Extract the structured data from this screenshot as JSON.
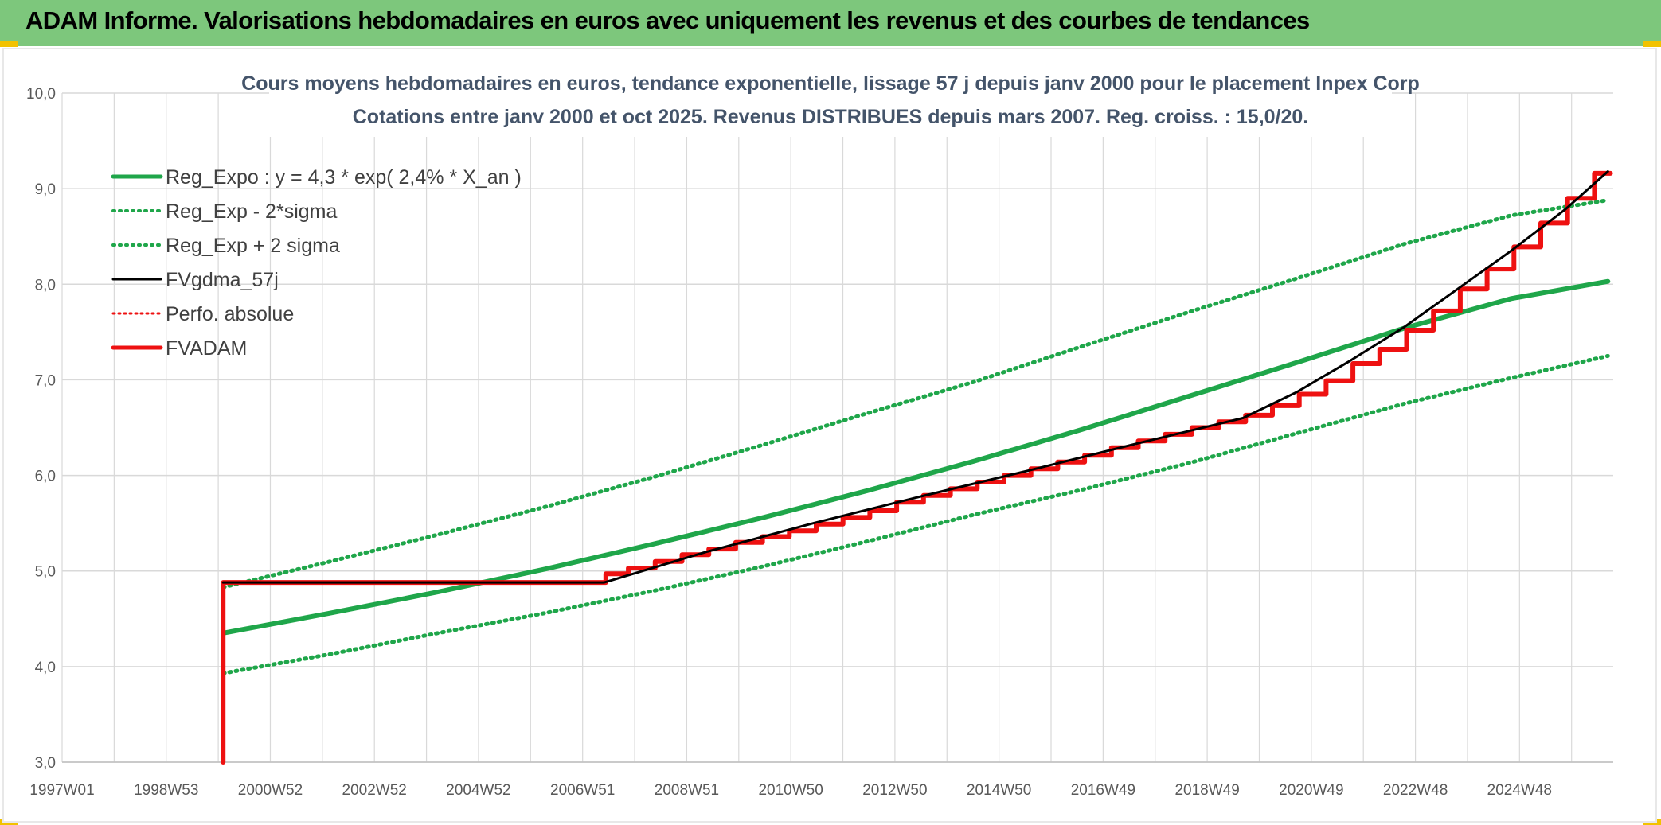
{
  "header": {
    "title": "ADAM Informe. Valorisations hebdomadaires en euros avec uniquement les revenus et des courbes de tendances"
  },
  "colors": {
    "banner": "#7dc77c",
    "trend": "#1fa64a",
    "gdma": "#000000",
    "fvadam": "#ee1111",
    "perfo": "#ee1111",
    "grid": "#d9d9d9"
  },
  "chart_data": {
    "type": "line",
    "title": "Cours moyens hebdomadaires en euros, tendance exponentielle, lissage 57 j depuis janv 2000 pour le placement Inpex Corp",
    "subtitle": "Cotations entre janv 2000 et oct 2025. Revenus DISTRIBUES depuis mars 2007. Reg. croiss. : 15,0/20.",
    "xlabel": "",
    "ylabel": "",
    "ylim": [
      3.0,
      10.0
    ],
    "xlim_years": [
      1997.0,
      2025.9
    ],
    "y_ticks": [
      "3,0",
      "4,0",
      "5,0",
      "6,0",
      "7,0",
      "8,0",
      "9,0",
      "10,0"
    ],
    "x_ticks": [
      "1997W01",
      "1998W53",
      "2000W52",
      "2002W52",
      "2004W52",
      "2006W51",
      "2008W51",
      "2010W50",
      "2012W50",
      "2014W50",
      "2016W49",
      "2018W49",
      "2020W49",
      "2022W48",
      "2024W48"
    ],
    "grid": true,
    "legend_position": "top-left",
    "series": [
      {
        "name": "Reg_Expo : y = 4,3 * exp( 2,4% *  X_an )",
        "style": "solid-green",
        "x": [
          2000.0,
          2002.0,
          2004.0,
          2006.0,
          2008.0,
          2010.0,
          2012.0,
          2014.0,
          2016.0,
          2018.0,
          2020.0,
          2022.0,
          2024.0,
          2025.8
        ],
        "values": [
          4.35,
          4.56,
          4.78,
          5.02,
          5.28,
          5.55,
          5.84,
          6.15,
          6.48,
          6.83,
          7.18,
          7.54,
          7.85,
          8.03
        ]
      },
      {
        "name": "Reg_Exp - 2*sigma",
        "style": "dotted-green",
        "x": [
          2000.0,
          2002.0,
          2004.0,
          2006.0,
          2008.0,
          2010.0,
          2012.0,
          2014.0,
          2016.0,
          2018.0,
          2020.0,
          2022.0,
          2024.0,
          2025.8
        ],
        "values": [
          3.93,
          4.13,
          4.35,
          4.56,
          4.79,
          5.04,
          5.31,
          5.59,
          5.85,
          6.13,
          6.44,
          6.75,
          7.02,
          7.25
        ]
      },
      {
        "name": "Reg_Exp + 2 sigma",
        "style": "dotted-green",
        "x": [
          2000.0,
          2002.0,
          2004.0,
          2006.0,
          2008.0,
          2010.0,
          2012.0,
          2014.0,
          2016.0,
          2018.0,
          2020.0,
          2022.0,
          2024.0,
          2025.8
        ],
        "values": [
          4.83,
          5.1,
          5.38,
          5.67,
          5.98,
          6.31,
          6.65,
          6.98,
          7.35,
          7.71,
          8.06,
          8.42,
          8.72,
          8.88
        ]
      },
      {
        "name": "FVgdma_57j",
        "style": "solid-black",
        "x": [
          2000.0,
          2007.1,
          2009.0,
          2011.0,
          2013.0,
          2015.0,
          2017.0,
          2019.0,
          2020.0,
          2021.0,
          2022.0,
          2023.0,
          2024.0,
          2025.0,
          2025.8
        ],
        "values": [
          4.88,
          4.88,
          5.2,
          5.5,
          5.78,
          6.05,
          6.33,
          6.6,
          6.87,
          7.2,
          7.55,
          7.95,
          8.35,
          8.78,
          9.18
        ]
      },
      {
        "name": "Perfo. absolue",
        "style": "dotted-red",
        "x": [],
        "values": []
      },
      {
        "name": "FVADAM",
        "style": "solid-red-step",
        "x": [
          2000.0,
          2000.0,
          2007.13,
          2007.55,
          2008.05,
          2008.55,
          2009.05,
          2009.55,
          2010.05,
          2010.55,
          2011.05,
          2011.55,
          2012.05,
          2012.55,
          2013.05,
          2013.55,
          2014.05,
          2014.55,
          2015.05,
          2015.55,
          2016.05,
          2016.55,
          2017.05,
          2017.55,
          2018.05,
          2018.55,
          2019.05,
          2019.55,
          2020.05,
          2020.55,
          2021.05,
          2021.55,
          2022.05,
          2022.55,
          2023.05,
          2023.55,
          2024.05,
          2024.55,
          2025.05,
          2025.55
        ],
        "values": [
          3.0,
          4.88,
          4.97,
          5.03,
          5.1,
          5.17,
          5.23,
          5.3,
          5.36,
          5.42,
          5.49,
          5.56,
          5.63,
          5.72,
          5.79,
          5.86,
          5.93,
          6.0,
          6.07,
          6.14,
          6.21,
          6.29,
          6.36,
          6.43,
          6.5,
          6.56,
          6.63,
          6.73,
          6.85,
          6.99,
          7.17,
          7.32,
          7.52,
          7.72,
          7.95,
          8.16,
          8.39,
          8.64,
          8.9,
          9.16
        ]
      }
    ]
  }
}
